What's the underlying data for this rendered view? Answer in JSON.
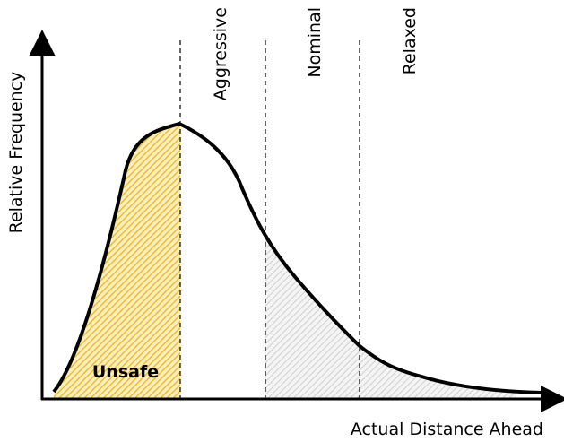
{
  "diagram": {
    "y_axis_label": "Relative Frequency",
    "x_axis_label": "Actual Distance Ahead",
    "zones": [
      "Aggressive",
      "Nominal",
      "Relaxed"
    ],
    "region_label": "Unsafe"
  }
}
